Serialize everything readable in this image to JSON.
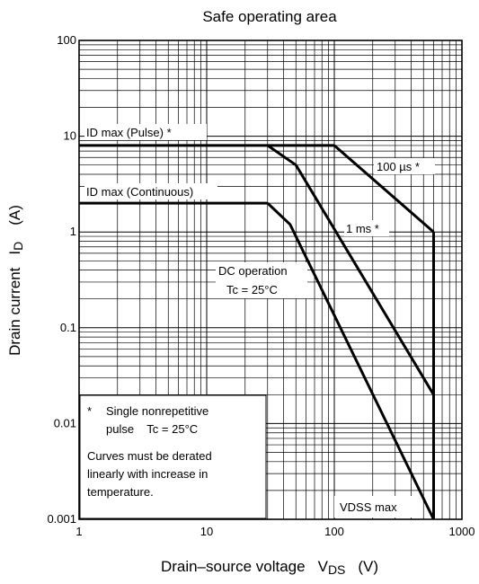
{
  "chart_data": {
    "type": "line",
    "title": "Safe operating area",
    "xlabel": {
      "main": "Drain–source voltage",
      "symbol": "V",
      "sub": "DS",
      "unit": "(V)"
    },
    "ylabel": {
      "main": "Drain current",
      "symbol": "I",
      "sub": "D",
      "unit": "(A)"
    },
    "x_scale": "log",
    "y_scale": "log",
    "xlim": [
      1,
      1000
    ],
    "ylim": [
      0.001,
      100
    ],
    "x_ticks": [
      {
        "value": 1,
        "label": "1"
      },
      {
        "value": 10,
        "label": "10"
      },
      {
        "value": 100,
        "label": "100"
      },
      {
        "value": 1000,
        "label": "1000"
      }
    ],
    "y_ticks": [
      {
        "value": 100,
        "label": "100"
      },
      {
        "value": 10,
        "label": "10"
      },
      {
        "value": 1,
        "label": "1"
      },
      {
        "value": 0.1,
        "label": "0.1"
      },
      {
        "value": 0.01,
        "label": "0.01"
      },
      {
        "value": 0.001,
        "label": "0.001"
      }
    ],
    "grid": true,
    "series": [
      {
        "name": "ID max (Pulse) *",
        "points": [
          [
            1,
            8
          ],
          [
            100,
            8
          ]
        ]
      },
      {
        "name": "100 µs *",
        "points": [
          [
            100,
            8
          ],
          [
            600,
            1
          ]
        ]
      },
      {
        "name": "1 ms *",
        "points": [
          [
            30,
            8
          ],
          [
            50,
            5
          ],
          [
            600,
            0.02
          ]
        ]
      },
      {
        "name": "ID max (Continuous)",
        "points": [
          [
            1,
            2
          ],
          [
            30,
            2
          ]
        ]
      },
      {
        "name": "DC operation",
        "points": [
          [
            30,
            2
          ],
          [
            45,
            1.2
          ],
          [
            600,
            0.001
          ]
        ]
      },
      {
        "name": "VDSS max",
        "points": [
          [
            600,
            1
          ],
          [
            600,
            0.001
          ]
        ]
      }
    ],
    "annotations": {
      "id_pulse": "ID max (Pulse) *",
      "id_continuous": "ID max (Continuous)",
      "us100": "100 µs *",
      "ms1": "1 ms *",
      "dc_line1": "DC operation",
      "dc_line2": "Tc = 25°C",
      "vdss": "VDSS max"
    },
    "note": {
      "star": "*",
      "line1": "Single nonrepetitive",
      "line2": "pulse    Tc = 25°C",
      "line3": "Curves must be derated",
      "line4": "linearly with increase in",
      "line5": "temperature."
    }
  }
}
